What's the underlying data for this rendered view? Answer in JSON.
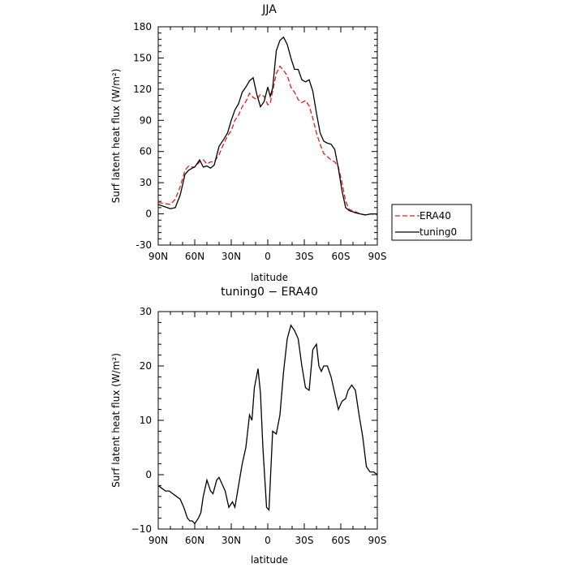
{
  "chart_data": [
    {
      "type": "line",
      "title": "JJA",
      "xlabel": "latitude",
      "ylabel": "Surf latent heat flux (W/m²)",
      "xlim": [
        90,
        -90
      ],
      "ylim": [
        -30,
        180
      ],
      "xticks": [
        90,
        60,
        30,
        0,
        -30,
        -60,
        -90
      ],
      "xtick_labels": [
        "90N",
        "60N",
        "30N",
        "0",
        "30S",
        "60S",
        "90S"
      ],
      "yticks": [
        -30,
        0,
        30,
        60,
        90,
        120,
        150,
        180
      ],
      "ytick_labels": [
        "-30",
        "0",
        "30",
        "60",
        "90",
        "120",
        "150",
        "180"
      ],
      "legend_position": "right",
      "series": [
        {
          "name": "ERA40",
          "color": "#e41a1c",
          "dash": true,
          "x": [
            90,
            85,
            80,
            76,
            72,
            68,
            65,
            62,
            60,
            56,
            53,
            50,
            47,
            44,
            40,
            36,
            33,
            30,
            27,
            24,
            21,
            18,
            15,
            12,
            9,
            6,
            3,
            0,
            -2,
            -4,
            -7,
            -10,
            -13,
            -16,
            -19,
            -22,
            -25,
            -28,
            -31,
            -34,
            -37,
            -40,
            -43,
            -46,
            -49,
            -52,
            -55,
            -58,
            -61,
            -64,
            -67,
            -70,
            -72,
            -76,
            -80,
            -85,
            -90
          ],
          "y": [
            11,
            10,
            9,
            14,
            26,
            42,
            46,
            45,
            45,
            50,
            52,
            48,
            50,
            50,
            57,
            68,
            75,
            80,
            90,
            95,
            103,
            108,
            116,
            112,
            110,
            115,
            113,
            105,
            106,
            118,
            135,
            142,
            138,
            133,
            122,
            117,
            110,
            107,
            109,
            104,
            92,
            78,
            67,
            58,
            55,
            52,
            50,
            45,
            30,
            12,
            4,
            3,
            2,
            0,
            -1,
            0,
            -1
          ]
        },
        {
          "name": "tuning0",
          "color": "#000000",
          "dash": false,
          "x": [
            90,
            85,
            80,
            76,
            72,
            68,
            65,
            62,
            60,
            56,
            53,
            50,
            47,
            44,
            40,
            36,
            33,
            30,
            27,
            24,
            21,
            18,
            15,
            12,
            9,
            6,
            3,
            0,
            -2,
            -4,
            -7,
            -10,
            -13,
            -16,
            -19,
            -22,
            -25,
            -28,
            -31,
            -34,
            -37,
            -40,
            -43,
            -46,
            -49,
            -52,
            -55,
            -58,
            -61,
            -64,
            -67,
            -70,
            -72,
            -76,
            -80,
            -85,
            -90
          ],
          "y": [
            9,
            7,
            5,
            6,
            18,
            38,
            42,
            44,
            45,
            52,
            45,
            46,
            44,
            47,
            65,
            72,
            78,
            90,
            100,
            106,
            117,
            122,
            128,
            131,
            115,
            103,
            108,
            122,
            113,
            121,
            157,
            167,
            170,
            163,
            150,
            139,
            139,
            129,
            127,
            129,
            118,
            97,
            78,
            70,
            68,
            67,
            62,
            44,
            22,
            6,
            3,
            2,
            1,
            0,
            -1,
            0,
            0
          ]
        }
      ]
    },
    {
      "type": "line",
      "title": "tuning0 − ERA40",
      "xlabel": "latitude",
      "ylabel": "Surf latent heat flux (W/m²)",
      "xlim": [
        90,
        -90
      ],
      "ylim": [
        -10,
        30
      ],
      "xticks": [
        90,
        60,
        30,
        0,
        -30,
        -60,
        -90
      ],
      "xtick_labels": [
        "90N",
        "60N",
        "30N",
        "0",
        "30S",
        "60S",
        "90S"
      ],
      "yticks": [
        -10,
        0,
        10,
        20,
        30
      ],
      "ytick_labels": [
        "−10",
        "0",
        "10",
        "20",
        "30"
      ],
      "series": [
        {
          "color": "#000000",
          "dash": false,
          "x": [
            90,
            87,
            84,
            81,
            78,
            75,
            72,
            69,
            66,
            64,
            62,
            60,
            57,
            55,
            53,
            50,
            47,
            45,
            42,
            40,
            37,
            35,
            32,
            29,
            27,
            24,
            21,
            18,
            15,
            13,
            11,
            8,
            6,
            4,
            1,
            -1,
            -4,
            -7,
            -10,
            -13,
            -16,
            -19,
            -22,
            -25,
            -28,
            -31,
            -34,
            -37,
            -40,
            -42,
            -44,
            -46,
            -49,
            -52,
            -55,
            -58,
            -61,
            -64,
            -66,
            -69,
            -72,
            -75,
            -78,
            -81,
            -84,
            -87,
            -90
          ],
          "y": [
            -2,
            -2.5,
            -3,
            -3,
            -3.5,
            -4,
            -4.5,
            -6,
            -8,
            -8.5,
            -8.5,
            -9,
            -8,
            -7,
            -4,
            -1,
            -3,
            -3.5,
            -1,
            -0.5,
            -2,
            -3,
            -6,
            -5,
            -6,
            -2,
            2,
            5,
            11,
            10,
            16,
            19.5,
            15,
            5,
            -6,
            -6.5,
            8,
            7.5,
            11,
            19,
            25,
            27.5,
            26.5,
            25,
            20,
            16,
            15.5,
            23,
            24,
            20,
            19,
            20,
            20,
            18,
            15,
            12,
            13.5,
            14,
            15.5,
            16.5,
            15.5,
            11,
            7,
            1.5,
            0.5,
            0.5,
            0
          ]
        }
      ]
    }
  ],
  "legend": {
    "entries": [
      {
        "label": "ERA40",
        "color": "#e41a1c",
        "dash": true
      },
      {
        "label": "tuning0",
        "color": "#000000",
        "dash": false
      }
    ]
  }
}
